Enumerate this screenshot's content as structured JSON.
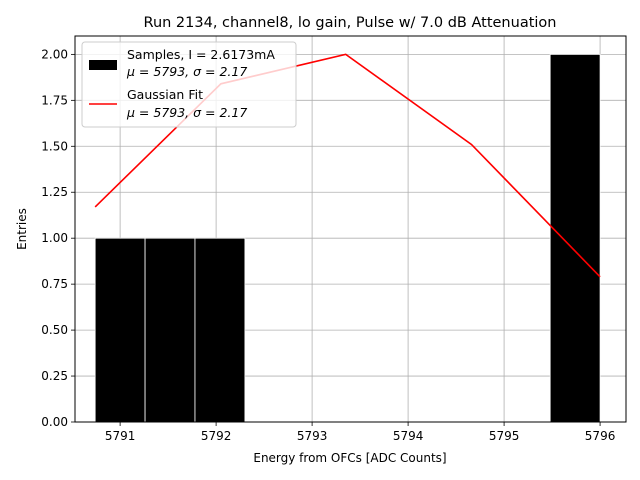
{
  "chart_data": {
    "type": "bar",
    "title": "Run 2134, channel8, lo gain, Pulse w/ 7.0 dB Attenuation",
    "xlabel": "Energy from OFCs [ADC Counts]",
    "ylabel": "Entries",
    "xlim": [
      5790.53,
      5796.27
    ],
    "ylim": [
      0,
      2.1
    ],
    "grid": true,
    "legend_position": "top-left",
    "x_ticks": [
      "5791",
      "5792",
      "5793",
      "5794",
      "5795",
      "5796"
    ],
    "x_tick_values": [
      5791,
      5792,
      5793,
      5794,
      5795,
      5796
    ],
    "y_ticks": [
      "0.00",
      "0.25",
      "0.50",
      "0.75",
      "1.00",
      "1.25",
      "1.50",
      "1.75",
      "2.00"
    ],
    "y_tick_values": [
      0,
      0.25,
      0.5,
      0.75,
      1.0,
      1.25,
      1.5,
      1.75,
      2.0
    ],
    "bins": [
      {
        "x0": 5790.74,
        "x1": 5791.26,
        "value": 1
      },
      {
        "x0": 5791.26,
        "x1": 5791.78,
        "value": 1
      },
      {
        "x0": 5791.78,
        "x1": 5792.3,
        "value": 1
      },
      {
        "x0": 5795.48,
        "x1": 5796.0,
        "value": 2
      }
    ],
    "series": [
      {
        "name": "Samples, I = 2.6173mA",
        "stats": "μ = 5793, σ = 2.17",
        "color": "#000000",
        "kind": "histogram"
      },
      {
        "name": "Gaussian Fit",
        "stats": "μ = 5793, σ = 2.17",
        "color": "#ff0000",
        "kind": "line",
        "x": [
          5790.74,
          5792.05,
          5793.35,
          5794.66,
          5796.0
        ],
        "y": [
          1.17,
          1.84,
          2.0,
          1.51,
          0.79
        ]
      }
    ]
  }
}
